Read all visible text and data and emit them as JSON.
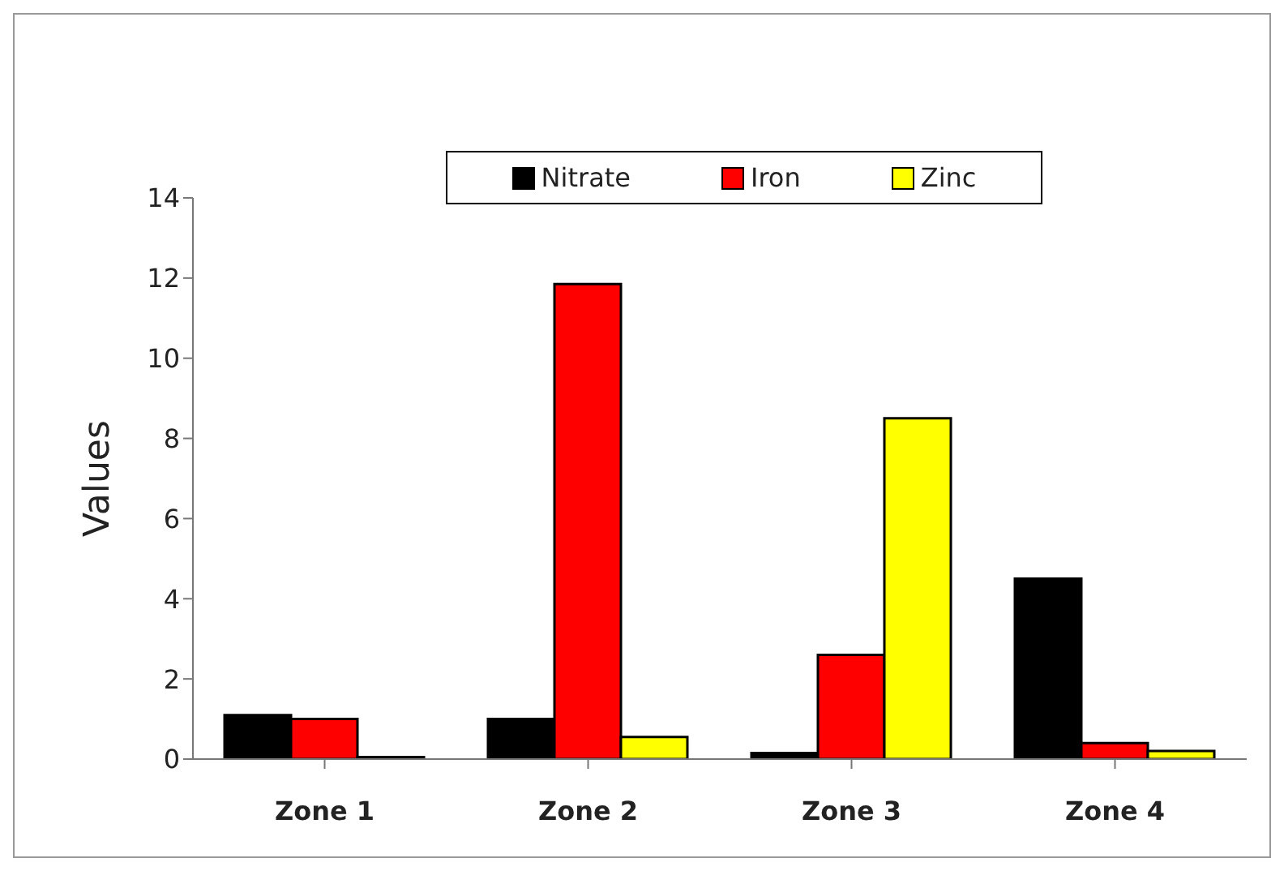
{
  "chart_data": {
    "type": "bar",
    "ylabel": "Values",
    "categories": [
      "Zone 1",
      "Zone 2",
      "Zone 3",
      "Zone 4"
    ],
    "series": [
      {
        "name": "Nitrate",
        "color": "#000000",
        "values": [
          1.1,
          1.0,
          0.15,
          4.5
        ]
      },
      {
        "name": "Iron",
        "color": "#ff0000",
        "values": [
          1.0,
          11.85,
          2.6,
          0.4
        ]
      },
      {
        "name": "Zinc",
        "color": "#ffff00",
        "values": [
          0.05,
          0.55,
          8.5,
          0.2
        ]
      }
    ],
    "ylim": [
      0,
      14
    ],
    "yticks": [
      0,
      2,
      4,
      6,
      8,
      10,
      12,
      14
    ],
    "grid": false,
    "legend": "top"
  }
}
